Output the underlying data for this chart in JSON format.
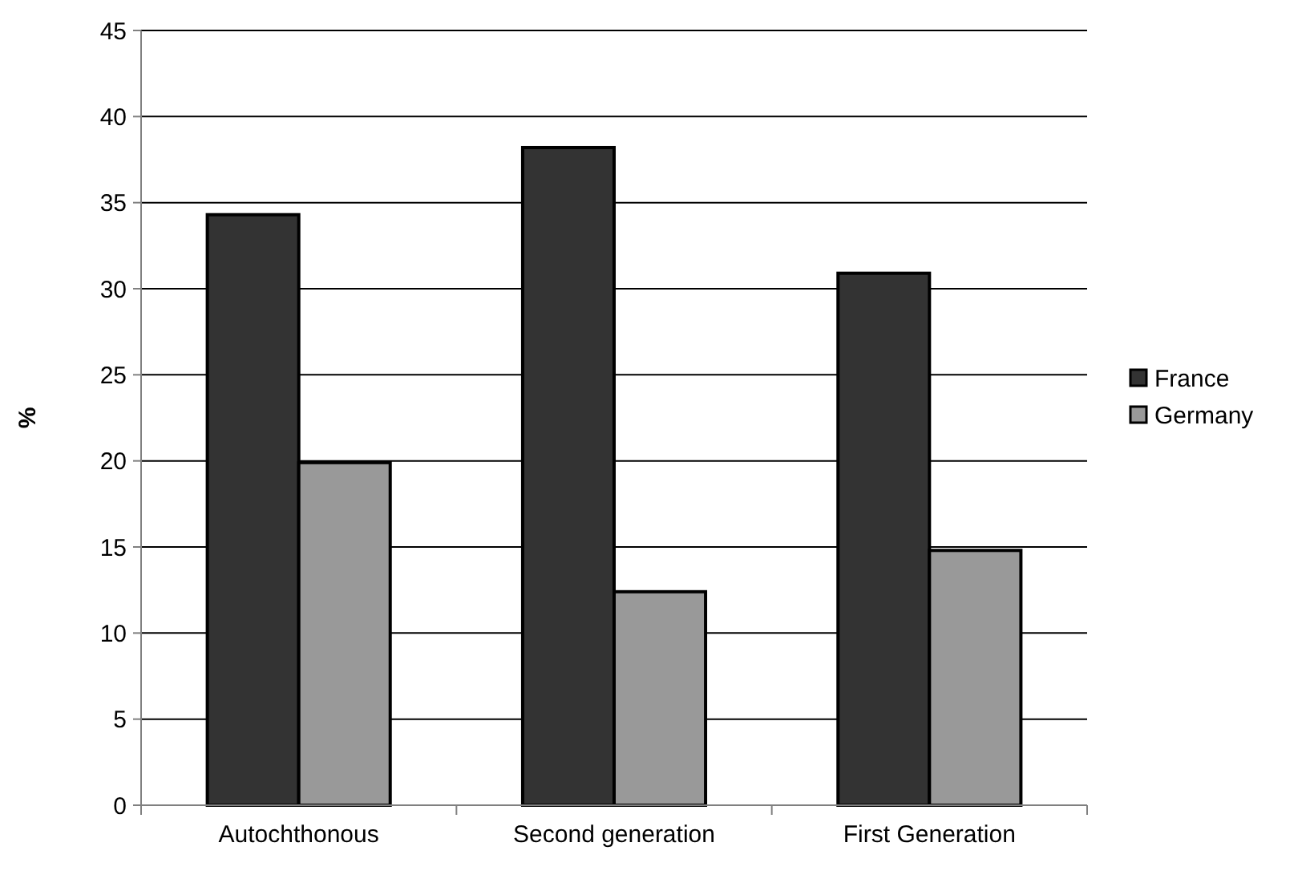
{
  "chart_data": {
    "type": "bar",
    "ylabel": "%",
    "categories": [
      "Autochthonous",
      "Second generation",
      "First Generation"
    ],
    "series": [
      {
        "name": "France",
        "color": "#333333",
        "values": [
          34.3,
          38.2,
          30.9
        ]
      },
      {
        "name": "Germany",
        "color": "#999999",
        "values": [
          19.9,
          12.4,
          14.8
        ]
      }
    ],
    "ylim": [
      0,
      45
    ],
    "yticks": [
      0,
      5,
      10,
      15,
      20,
      25,
      30,
      35,
      40,
      45
    ],
    "grid": "y",
    "legend": "right"
  }
}
